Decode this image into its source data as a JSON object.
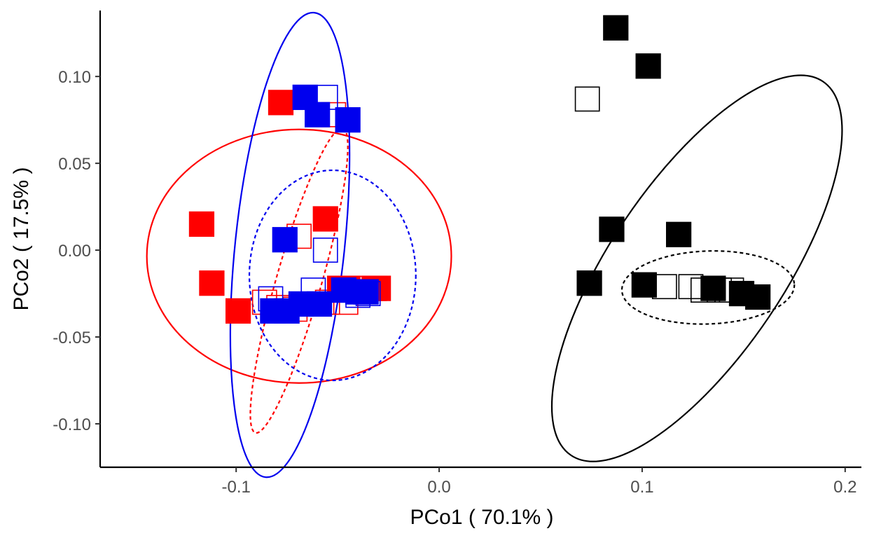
{
  "chart_data": {
    "type": "scatter",
    "xlabel": "PCo1 ( 70.1% )",
    "ylabel": "PCo2 ( 17.5% )",
    "xlim": [
      -0.167,
      0.208
    ],
    "ylim": [
      -0.125,
      0.14
    ],
    "xticks": [
      {
        "value": -0.1,
        "label": "-0.1"
      },
      {
        "value": 0.0,
        "label": "0.0"
      },
      {
        "value": 0.1,
        "label": "0.1"
      },
      {
        "value": 0.2,
        "label": "0.2"
      }
    ],
    "yticks": [
      {
        "value": -0.1,
        "label": "-0.10"
      },
      {
        "value": -0.05,
        "label": "-0.05"
      },
      {
        "value": 0.0,
        "label": "0.00"
      },
      {
        "value": 0.05,
        "label": "0.05"
      },
      {
        "value": 0.1,
        "label": "0.10"
      }
    ],
    "grid": false,
    "legend": "none",
    "colors": {
      "red": "#ff0000",
      "blue": "#0000ee",
      "black": "#000000"
    },
    "marker_size": 0.0125,
    "series": [
      {
        "color": "#ff0000",
        "filled": true,
        "points": [
          [
            -0.078,
            0.085
          ],
          [
            -0.117,
            0.015
          ],
          [
            -0.112,
            -0.019
          ],
          [
            -0.099,
            -0.035
          ],
          [
            -0.056,
            0.018
          ],
          [
            -0.049,
            -0.022
          ],
          [
            -0.045,
            -0.022
          ],
          [
            -0.032,
            -0.022
          ],
          [
            -0.03,
            -0.022
          ]
        ]
      },
      {
        "color": "#ff0000",
        "filled": false,
        "points": [
          [
            -0.052,
            0.078
          ],
          [
            -0.069,
            0.008
          ],
          [
            -0.086,
            -0.03
          ],
          [
            -0.079,
            -0.033
          ],
          [
            -0.071,
            -0.034
          ],
          [
            -0.055,
            -0.03
          ],
          [
            -0.046,
            -0.03
          ],
          [
            -0.04,
            -0.022
          ],
          [
            -0.035,
            -0.022
          ]
        ]
      },
      {
        "color": "#0000ee",
        "filled": true,
        "points": [
          [
            -0.066,
            0.088
          ],
          [
            -0.06,
            0.078
          ],
          [
            -0.045,
            0.075
          ],
          [
            -0.076,
            0.006
          ],
          [
            -0.082,
            -0.035
          ],
          [
            -0.075,
            -0.035
          ],
          [
            -0.068,
            -0.031
          ],
          [
            -0.059,
            -0.031
          ],
          [
            -0.047,
            -0.023
          ],
          [
            -0.04,
            -0.024
          ],
          [
            -0.036,
            -0.024
          ]
        ]
      },
      {
        "color": "#0000ee",
        "filled": false,
        "points": [
          [
            -0.056,
            0.088
          ],
          [
            -0.056,
            0.0
          ],
          [
            -0.083,
            -0.028
          ],
          [
            -0.062,
            -0.023
          ],
          [
            -0.04,
            -0.026
          ],
          [
            -0.035,
            -0.025
          ]
        ]
      },
      {
        "color": "#000000",
        "filled": true,
        "points": [
          [
            0.087,
            0.128
          ],
          [
            0.103,
            0.106
          ],
          [
            0.085,
            0.012
          ],
          [
            0.118,
            0.009
          ],
          [
            0.074,
            -0.019
          ],
          [
            0.101,
            -0.02
          ],
          [
            0.135,
            -0.022
          ],
          [
            0.149,
            -0.025
          ],
          [
            0.157,
            -0.027
          ]
        ]
      },
      {
        "color": "#000000",
        "filled": false,
        "points": [
          [
            0.073,
            0.087
          ],
          [
            0.074,
            -0.019
          ],
          [
            0.111,
            -0.021
          ],
          [
            0.124,
            -0.021
          ],
          [
            0.13,
            -0.023
          ],
          [
            0.138,
            -0.023
          ],
          [
            0.144,
            -0.023
          ]
        ]
      }
    ],
    "ellipses": [
      {
        "color": "#ff0000",
        "dashed": false,
        "cx": -0.069,
        "cy": -0.0035,
        "rx": 0.075,
        "ry": 0.073,
        "angle": 0
      },
      {
        "color": "#ff0000",
        "dashed": true,
        "cx": -0.069,
        "cy": -0.0175,
        "rx": 0.078,
        "ry": 0.013,
        "angle": -74
      },
      {
        "color": "#0000ee",
        "dashed": false,
        "cx": -0.0735,
        "cy": 0.003,
        "rx": 0.115,
        "ry": 0.0315,
        "angle": -84
      },
      {
        "color": "#0000ee",
        "dashed": true,
        "cx": -0.0525,
        "cy": -0.0145,
        "rx": 0.041,
        "ry": 0.0605,
        "angle": 0
      },
      {
        "color": "#000000",
        "dashed": false,
        "cx": 0.127,
        "cy": -0.0105,
        "rx": 0.111,
        "ry": 0.05,
        "angle": -56
      },
      {
        "color": "#000000",
        "dashed": true,
        "cx": 0.1325,
        "cy": -0.0215,
        "rx": 0.0425,
        "ry": 0.021,
        "angle": -2
      }
    ]
  }
}
